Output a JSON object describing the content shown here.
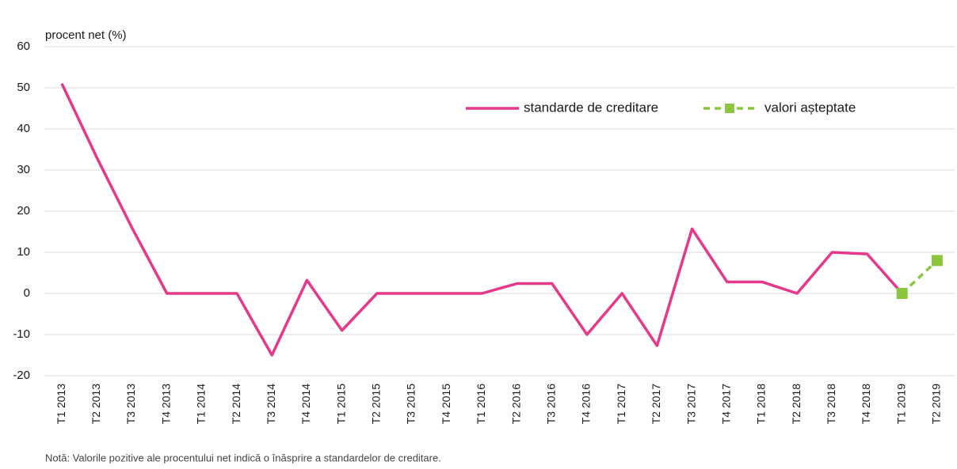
{
  "chart_data": {
    "type": "line",
    "y_label": "procent net (%)",
    "note": "Notă: Valorile pozitive ale procentului net indică o înăsprire a standardelor de creditare.",
    "categories": [
      "T1 2013",
      "T2 2013",
      "T3 2013",
      "T4 2013",
      "T1 2014",
      "T2 2014",
      "T3 2014",
      "T4 2014",
      "T1 2015",
      "T2 2015",
      "T3 2015",
      "T4 2015",
      "T1 2016",
      "T2 2016",
      "T3 2016",
      "T4 2016",
      "T1 2017",
      "T2 2017",
      "T3 2017",
      "T4 2017",
      "T1 2018",
      "T2 2018",
      "T3 2018",
      "T4 2018",
      "T1 2019",
      "T2 2019"
    ],
    "series": [
      {
        "name": "standarde de creditare",
        "color": "#e6388a",
        "dashed": false,
        "markers": false,
        "values": [
          51,
          33,
          16,
          0,
          0,
          0,
          -15,
          3.2,
          -9,
          0,
          0,
          0,
          0,
          2.4,
          2.4,
          -10,
          0,
          -12.7,
          15.7,
          2.8,
          2.8,
          0,
          10,
          9.6,
          0,
          null
        ]
      },
      {
        "name": "valori așteptate",
        "color": "#8cc63f",
        "dashed": true,
        "markers": true,
        "values": [
          null,
          null,
          null,
          null,
          null,
          null,
          null,
          null,
          null,
          null,
          null,
          null,
          null,
          null,
          null,
          null,
          null,
          null,
          null,
          null,
          null,
          null,
          null,
          null,
          0,
          8
        ]
      }
    ],
    "ylim": [
      -20,
      60
    ],
    "yticks": [
      -20,
      -10,
      0,
      10,
      20,
      30,
      40,
      50,
      60
    ],
    "grid": true
  }
}
